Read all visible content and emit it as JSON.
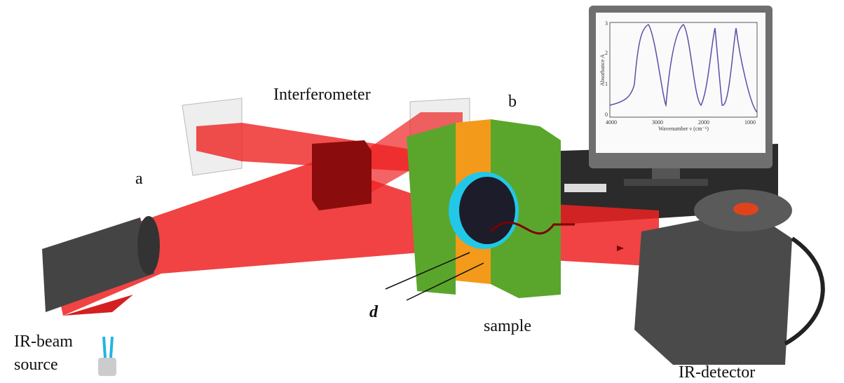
{
  "labels": {
    "interferometer": "Interferometer",
    "a": "a",
    "b": "b",
    "d": "d",
    "sample": "sample",
    "source_line1": "IR-beam",
    "source_line2": "source",
    "detector": "IR-detector"
  },
  "monitor": {
    "y_label": "Absorbance A",
    "x_label": "Wavenumber ν (cm⁻¹)",
    "x_ticks": [
      "4000",
      "3000",
      "2000",
      "1000"
    ],
    "y_ticks": [
      "0",
      "1",
      "2",
      "3"
    ]
  }
}
